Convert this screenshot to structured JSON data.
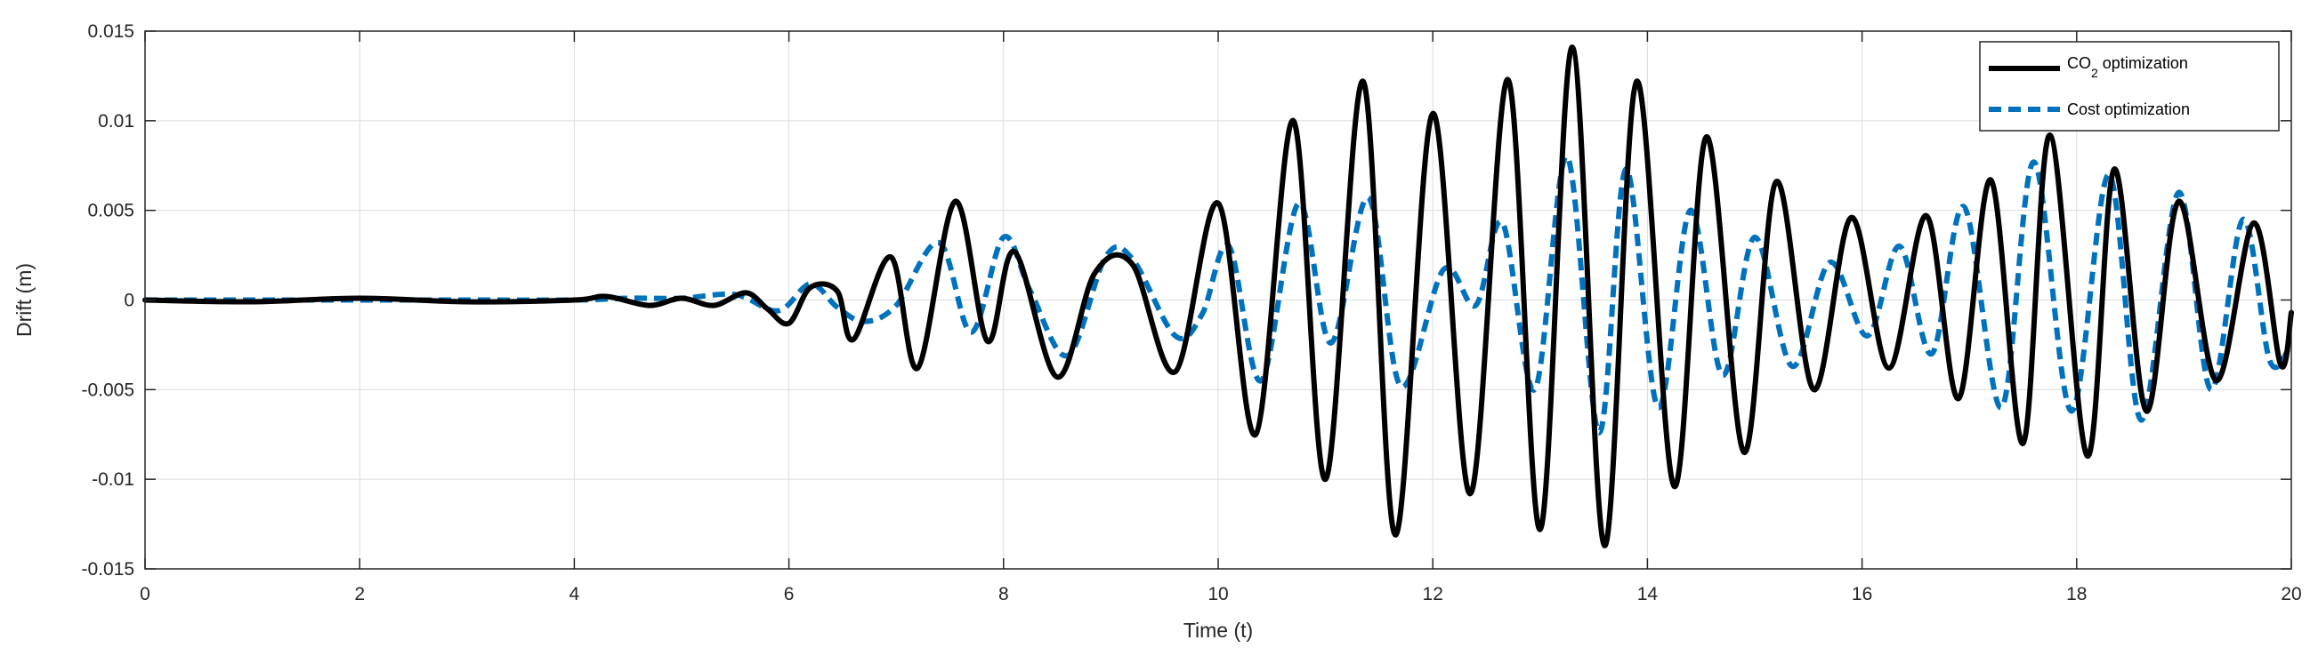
{
  "chart_data": {
    "type": "line",
    "xlabel": "Time (t)",
    "ylabel": "Drift (m)",
    "xlim": [
      0,
      20
    ],
    "ylim": [
      -0.015,
      0.015
    ],
    "grid": true,
    "legend_position": "top-right",
    "x_ticks": [
      "0",
      "2",
      "4",
      "6",
      "8",
      "10",
      "12",
      "14",
      "16",
      "18",
      "20"
    ],
    "y_ticks": [
      "-0.015",
      "-0.01",
      "-0.005",
      "0",
      "0.005",
      "0.01",
      "0.015"
    ],
    "x_tick_values": [
      0,
      2,
      4,
      6,
      8,
      10,
      12,
      14,
      16,
      18,
      20
    ],
    "y_tick_values": [
      -0.015,
      -0.01,
      -0.005,
      0,
      0.005,
      0.01,
      0.015
    ],
    "legend": {
      "entry1_main": "CO",
      "entry1_sub": "2",
      "entry1_tail": " optimization",
      "entry2": "Cost optimization"
    },
    "series": [
      {
        "name": "CO2 optimization",
        "color": "#000000",
        "style": "solid",
        "points": [
          [
            0,
            0
          ],
          [
            1,
            -0.0001
          ],
          [
            2,
            0.0001
          ],
          [
            3,
            -0.0001
          ],
          [
            4,
            0
          ],
          [
            4.3,
            0.0002
          ],
          [
            4.7,
            -0.0003
          ],
          [
            5,
            0.0001
          ],
          [
            5.3,
            -0.0003
          ],
          [
            5.6,
            0.0004
          ],
          [
            5.8,
            -0.0005
          ],
          [
            6.0,
            -0.0013
          ],
          [
            6.2,
            0.0007
          ],
          [
            6.45,
            0.0005
          ],
          [
            6.6,
            -0.0022
          ],
          [
            6.95,
            0.0024
          ],
          [
            7.2,
            -0.0038
          ],
          [
            7.55,
            0.0055
          ],
          [
            7.85,
            -0.0023
          ],
          [
            8.1,
            0.0027
          ],
          [
            8.5,
            -0.0043
          ],
          [
            8.85,
            0.0015
          ],
          [
            9.2,
            0.002
          ],
          [
            9.6,
            -0.004
          ],
          [
            10.0,
            0.0054
          ],
          [
            10.35,
            -0.0075
          ],
          [
            10.7,
            0.01
          ],
          [
            11.0,
            -0.01
          ],
          [
            11.35,
            0.0122
          ],
          [
            11.65,
            -0.0131
          ],
          [
            12.0,
            0.0104
          ],
          [
            12.35,
            -0.0108
          ],
          [
            12.7,
            0.0123
          ],
          [
            13.0,
            -0.0128
          ],
          [
            13.3,
            0.0141
          ],
          [
            13.6,
            -0.0137
          ],
          [
            13.9,
            0.0122
          ],
          [
            14.25,
            -0.0104
          ],
          [
            14.55,
            0.0091
          ],
          [
            14.9,
            -0.0085
          ],
          [
            15.2,
            0.0066
          ],
          [
            15.55,
            -0.005
          ],
          [
            15.9,
            0.0046
          ],
          [
            16.25,
            -0.0038
          ],
          [
            16.6,
            0.0047
          ],
          [
            16.9,
            -0.0055
          ],
          [
            17.2,
            0.0067
          ],
          [
            17.5,
            -0.008
          ],
          [
            17.75,
            0.0092
          ],
          [
            18.1,
            -0.0087
          ],
          [
            18.35,
            0.0073
          ],
          [
            18.65,
            -0.0062
          ],
          [
            18.95,
            0.0055
          ],
          [
            19.3,
            -0.0045
          ],
          [
            19.65,
            0.0043
          ],
          [
            19.9,
            -0.0036
          ],
          [
            20,
            -0.0007
          ]
        ]
      },
      {
        "name": "Cost optimization",
        "color": "#0072BD",
        "style": "dashed",
        "points": [
          [
            0,
            0
          ],
          [
            1,
            0
          ],
          [
            2,
            0
          ],
          [
            3,
            0
          ],
          [
            4,
            0
          ],
          [
            4.5,
            0.0001
          ],
          [
            5,
            0.0001
          ],
          [
            5.5,
            0.0003
          ],
          [
            5.9,
            -0.0006
          ],
          [
            6.2,
            0.0009
          ],
          [
            6.45,
            -0.0004
          ],
          [
            6.7,
            -0.0012
          ],
          [
            7.0,
            -0.0003
          ],
          [
            7.4,
            0.0032
          ],
          [
            7.7,
            -0.0018
          ],
          [
            8.0,
            0.0035
          ],
          [
            8.25,
            0.0005
          ],
          [
            8.6,
            -0.0031
          ],
          [
            8.95,
            0.0024
          ],
          [
            9.2,
            0.0023
          ],
          [
            9.6,
            -0.002
          ],
          [
            9.85,
            -0.0008
          ],
          [
            10.1,
            0.003
          ],
          [
            10.4,
            -0.0045
          ],
          [
            10.75,
            0.0054
          ],
          [
            11.05,
            -0.0024
          ],
          [
            11.4,
            0.0057
          ],
          [
            11.7,
            -0.0048
          ],
          [
            12.1,
            0.0017
          ],
          [
            12.4,
            -0.0003
          ],
          [
            12.65,
            0.0043
          ],
          [
            12.95,
            -0.005
          ],
          [
            13.25,
            0.008
          ],
          [
            13.55,
            -0.0074
          ],
          [
            13.8,
            0.0073
          ],
          [
            14.1,
            -0.006
          ],
          [
            14.4,
            0.005
          ],
          [
            14.7,
            -0.0042
          ],
          [
            15.0,
            0.0035
          ],
          [
            15.35,
            -0.0037
          ],
          [
            15.7,
            0.0021
          ],
          [
            16.05,
            -0.002
          ],
          [
            16.35,
            0.003
          ],
          [
            16.65,
            -0.003
          ],
          [
            16.95,
            0.0052
          ],
          [
            17.3,
            -0.006
          ],
          [
            17.6,
            0.0077
          ],
          [
            17.95,
            -0.0062
          ],
          [
            18.3,
            0.007
          ],
          [
            18.6,
            -0.0067
          ],
          [
            18.95,
            0.006
          ],
          [
            19.25,
            -0.005
          ],
          [
            19.55,
            0.0045
          ],
          [
            19.8,
            -0.0034
          ],
          [
            20,
            -0.0024
          ]
        ]
      }
    ]
  }
}
